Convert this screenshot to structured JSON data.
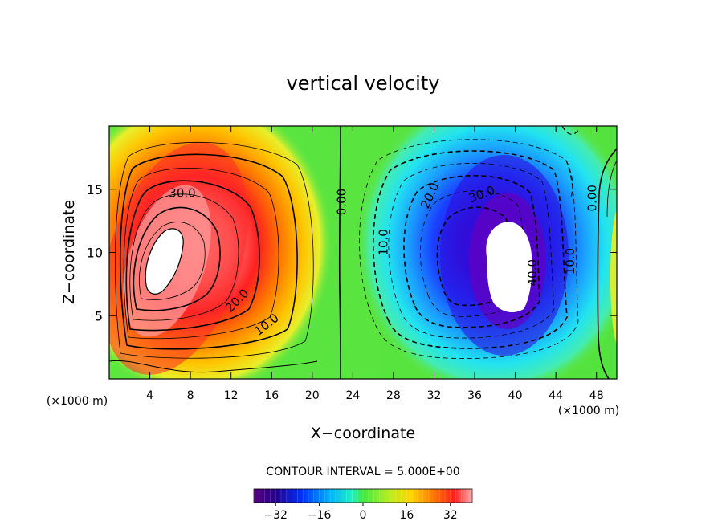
{
  "chart_data": {
    "type": "contour",
    "title": "vertical velocity",
    "xlabel": "X−coordinate",
    "ylabel": "Z−coordinate",
    "x_unit_left": "(×1000 m)",
    "x_unit_right": "(×1000 m)",
    "xlim": [
      0,
      50
    ],
    "ylim": [
      0,
      20
    ],
    "x_ticks": [
      4,
      8,
      12,
      16,
      20,
      24,
      28,
      32,
      36,
      40,
      44,
      48
    ],
    "y_ticks": [
      5,
      10,
      15
    ],
    "contour_interval_text": "CONTOUR INTERVAL = 5.000E+00",
    "contour_interval": 5,
    "contour_labels": [
      {
        "text": "30.0",
        "x": 7.2,
        "z": 14.7,
        "rot": 0
      },
      {
        "text": "20.0",
        "x": 12.6,
        "z": 6.2,
        "rot": -45
      },
      {
        "text": "10.0",
        "x": 15.5,
        "z": 4.3,
        "rot": -38
      },
      {
        "text": "0.00",
        "x": 22.9,
        "z": 14.0,
        "rot": -90
      },
      {
        "text": "10.0",
        "x": 27.0,
        "z": 10.8,
        "rot": -90
      },
      {
        "text": "20.0",
        "x": 31.6,
        "z": 14.5,
        "rot": -65
      },
      {
        "text": "30.0",
        "x": 36.7,
        "z": 14.6,
        "rot": -20
      },
      {
        "text": "40.0",
        "x": 41.7,
        "z": 8.4,
        "rot": -90
      },
      {
        "text": "10.0",
        "x": 45.4,
        "z": 9.3,
        "rot": -90
      },
      {
        "text": "0.00",
        "x": 47.6,
        "z": 14.3,
        "rot": -90
      }
    ],
    "updraft": {
      "center_x": 6.5,
      "center_z": 9.5,
      "peak": 42
    },
    "downdraft": {
      "center_x": 39.5,
      "center_z": 9.5,
      "peak": -45
    },
    "colorbar": {
      "range": [
        -40,
        40
      ],
      "tick_labels": [
        "−32",
        "−16",
        "0",
        "16",
        "32"
      ],
      "tick_values": [
        -32,
        -16,
        0,
        16,
        32
      ]
    }
  }
}
